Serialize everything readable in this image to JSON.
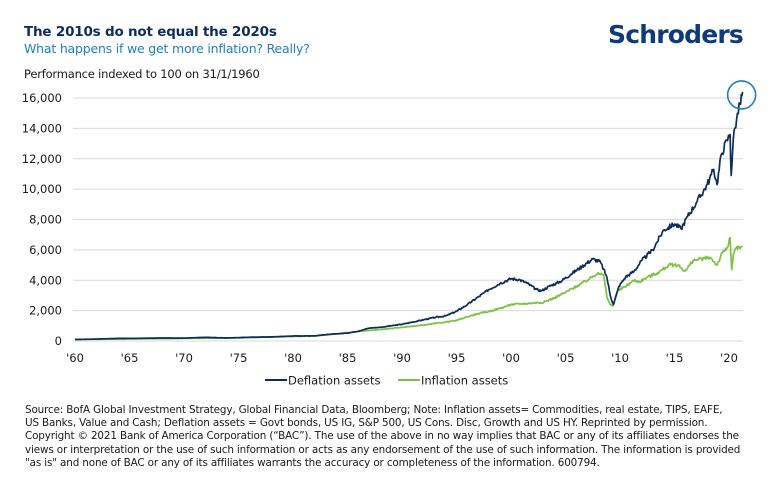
{
  "header": {
    "title": "The 2010s do not equal the 2020s",
    "subtitle": "What happens if we get more inflation? Really?",
    "logo_text": "Schroders",
    "unit_label": "Performance indexed to 100 on 31/1/1960"
  },
  "colors": {
    "deflation": "#0c2d5e",
    "inflation": "#7dc242",
    "highlight_circle": "#1f7fbf",
    "gridline": "#d9d9d9",
    "title": "#0c2d5e",
    "subtitle": "#1f7fbf"
  },
  "chart_data": {
    "type": "line",
    "title": "The 2010s do not equal the 2020s",
    "subtitle": "What happens if we get more inflation? Really?",
    "ylabel": "Performance indexed to 100 on 31/1/1960",
    "xlabel": "",
    "xlim": [
      1960,
      2021.3
    ],
    "ylim": [
      0,
      16000
    ],
    "yticks": [
      0,
      2000,
      4000,
      6000,
      8000,
      10000,
      12000,
      14000,
      16000
    ],
    "ytick_labels": [
      "0",
      "2,000",
      "4,000",
      "6,000",
      "8,000",
      "10,000",
      "12,000",
      "14,000",
      "16,000"
    ],
    "xticks": [
      1960,
      1965,
      1970,
      1975,
      1980,
      1985,
      1990,
      1995,
      2000,
      2005,
      2010,
      2015,
      2020
    ],
    "xtick_labels": [
      "'60",
      "'65",
      "'70",
      "'75",
      "'80",
      "'85",
      "'90",
      "'95",
      "'00",
      "'05",
      "'10",
      "'15",
      "'20"
    ],
    "grid": true,
    "legend_position": "bottom-center",
    "annotation": "circle highlighting latest deflation assets peak (~16,400)",
    "series": [
      {
        "name": "Deflation assets",
        "x": [
          1960,
          1962,
          1964,
          1966,
          1968,
          1970,
          1972,
          1974,
          1976,
          1978,
          1980,
          1982,
          1983,
          1985,
          1986,
          1987,
          1988,
          1990,
          1991,
          1992,
          1993,
          1994,
          1995,
          1996,
          1997,
          1998,
          1999,
          2000,
          2000.7,
          2001.5,
          2002.3,
          2002.8,
          2003.5,
          2004.5,
          2005.5,
          2006.5,
          2007.5,
          2008.2,
          2008.8,
          2009.1,
          2009.4,
          2009.9,
          2010.5,
          2011.3,
          2012,
          2013,
          2014,
          2015,
          2015.6,
          2016.2,
          2017,
          2018,
          2018.6,
          2018.9,
          2019.3,
          2019.8,
          2020.1,
          2020.2,
          2020.4,
          2020.7,
          2021,
          2021.25
        ],
        "values": [
          100,
          130,
          170,
          180,
          200,
          190,
          240,
          200,
          250,
          270,
          330,
          340,
          420,
          520,
          650,
          850,
          900,
          1100,
          1250,
          1400,
          1550,
          1650,
          1950,
          2400,
          2900,
          3400,
          3800,
          4100,
          4050,
          3800,
          3400,
          3300,
          3600,
          3900,
          4400,
          4900,
          5400,
          5200,
          4200,
          3000,
          2400,
          3600,
          4200,
          4600,
          5300,
          6000,
          7300,
          7700,
          7400,
          8200,
          9100,
          10300,
          11300,
          10300,
          12300,
          13200,
          13600,
          10900,
          13400,
          14600,
          15600,
          16400
        ]
      },
      {
        "name": "Inflation assets",
        "x": [
          1960,
          1965,
          1970,
          1975,
          1980,
          1982,
          1983,
          1985,
          1987,
          1988,
          1990,
          1992,
          1994,
          1995,
          1996,
          1997,
          1998,
          1999,
          2000,
          2001,
          2002,
          2003,
          2004,
          2005,
          2006,
          2007,
          2008,
          2008.5,
          2008.8,
          2009.1,
          2009.3,
          2009.8,
          2010.5,
          2011.3,
          2011.8,
          2012.5,
          2013.5,
          2014.5,
          2015.3,
          2016,
          2016.7,
          2017.5,
          2018.3,
          2018.9,
          2019.4,
          2019.9,
          2020.1,
          2020.25,
          2020.4,
          2020.6,
          2021,
          2021.25
        ],
        "values": [
          100,
          130,
          170,
          200,
          300,
          320,
          400,
          550,
          700,
          750,
          900,
          1050,
          1250,
          1350,
          1600,
          1800,
          1950,
          2150,
          2400,
          2450,
          2500,
          2550,
          2850,
          3200,
          3600,
          4000,
          4500,
          4300,
          2900,
          2400,
          2300,
          3300,
          3600,
          4000,
          3900,
          4200,
          4500,
          5000,
          5000,
          4600,
          5300,
          5400,
          5500,
          5000,
          5800,
          6200,
          6800,
          4700,
          5700,
          6100,
          6100,
          6200
        ]
      }
    ]
  },
  "footnote": {
    "lines": [
      "Source: BofA Global Investment Strategy, Global Financial Data, Bloomberg; Note: Inflation assets= Commodities, real estate, TIPS, EAFE,",
      "US Banks, Value and Cash; Deflation assets = Govt bonds, US IG, S&P 500, US Cons. Disc, Growth and US HY. Reprinted by permission.",
      "Copyright © 2021 Bank of America Corporation (“BAC”). The use of the above in no way implies that BAC or any of its affiliates endorses the",
      "views or interpretation or the use of such information or acts as any endorsement of the use of such information. The information is provided",
      "\"as is\" and none of BAC or any of its affiliates warrants the accuracy or completeness of the information. 600794."
    ]
  }
}
